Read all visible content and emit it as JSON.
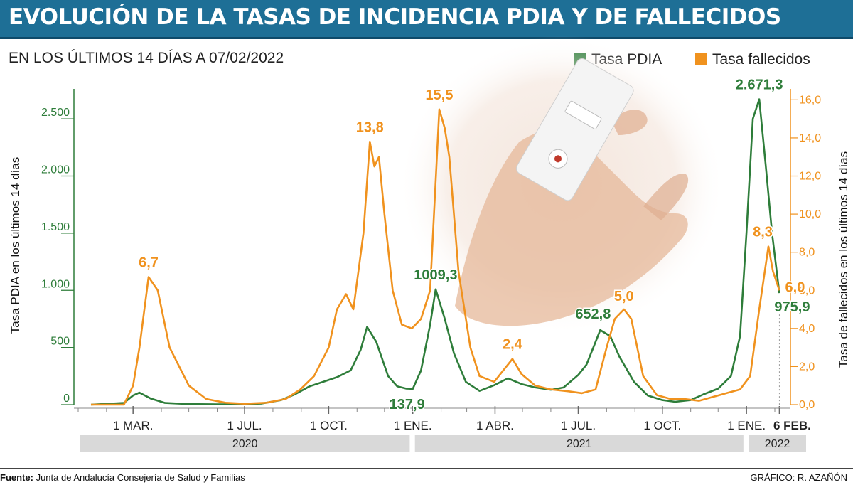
{
  "header": {
    "title": "EVOLUCIÓN DE LA TASAS DE INCIDENCIA PDIA Y DE FALLECIDOS",
    "subtitle": "EN LOS ÚLTIMOS 14 DÍAS A 07/02/2022"
  },
  "legend": {
    "pdia": "Tasa PDIA",
    "fallecidos": "Tasa fallecidos"
  },
  "colors": {
    "pdia": "#2e7d3a",
    "fallecidos": "#f0921e",
    "title_bg": "#1e6f96",
    "year_bar": "#d9d9d9"
  },
  "footer": {
    "source_label": "Fuente:",
    "source_text": "Junta de Andalucía Consejería de Salud y Familias",
    "credit": "GRÁFICO: R. AZAÑÓN"
  },
  "chart_data": {
    "type": "line",
    "title": "EVOLUCIÓN DE LA TASAS DE INCIDENCIA PDIA Y DE FALLECIDOS",
    "subtitle": "EN LOS ÚLTIMOS 14 DÍAS A 07/02/2022",
    "ylabel_left": "Tasa PDIA en los últimos 14 días",
    "ylabel_right": "Tasa de fallecidos en los últimos 14 días",
    "ylim_left": [
      0,
      2700
    ],
    "ylim_right": [
      0,
      16.2
    ],
    "yticks_left": [
      0,
      500,
      1000,
      1500,
      2000,
      2500
    ],
    "yticks_left_labels": [
      "0",
      "500",
      "1.000",
      "1.500",
      "2.000",
      "2.500"
    ],
    "yticks_right": [
      0,
      2,
      4,
      6,
      8,
      10,
      12,
      14,
      16
    ],
    "yticks_right_labels": [
      "0,0",
      "2,0",
      "4,0",
      "6,0",
      "8,0",
      "10,0",
      "12,0",
      "14,0",
      "16,0"
    ],
    "xlim": [
      "2020-01-01",
      "2022-02-15"
    ],
    "xticks": [
      {
        "date": "2020-03-01",
        "label": "1 MAR."
      },
      {
        "date": "2020-07-01",
        "label": "1 JUL."
      },
      {
        "date": "2020-10-01",
        "label": "1 OCT."
      },
      {
        "date": "2021-01-01",
        "label": "1 ENE."
      },
      {
        "date": "2021-04-01",
        "label": "1 ABR."
      },
      {
        "date": "2021-07-01",
        "label": "1 JUL."
      },
      {
        "date": "2021-10-01",
        "label": "1 OCT."
      },
      {
        "date": "2022-01-01",
        "label": "1 ENE."
      },
      {
        "date": "2022-02-06",
        "label": "6 FEB."
      }
    ],
    "years": [
      {
        "label": "2020",
        "start": "2020-01-01",
        "end": "2020-12-31"
      },
      {
        "label": "2021",
        "start": "2021-01-01",
        "end": "2021-12-31"
      },
      {
        "label": "2022",
        "start": "2022-01-01",
        "end": "2022-02-15"
      }
    ],
    "series": [
      {
        "name": "Tasa PDIA",
        "axis": "left",
        "x": [
          "2020-01-15",
          "2020-02-20",
          "2020-03-01",
          "2020-03-08",
          "2020-03-20",
          "2020-04-05",
          "2020-05-01",
          "2020-06-01",
          "2020-07-01",
          "2020-07-20",
          "2020-08-10",
          "2020-08-25",
          "2020-09-10",
          "2020-09-25",
          "2020-10-10",
          "2020-10-25",
          "2020-11-05",
          "2020-11-12",
          "2020-11-22",
          "2020-12-05",
          "2020-12-15",
          "2020-12-25",
          "2021-01-01",
          "2021-01-10",
          "2021-01-20",
          "2021-01-26",
          "2021-02-05",
          "2021-02-15",
          "2021-02-28",
          "2021-03-15",
          "2021-03-31",
          "2021-04-15",
          "2021-04-30",
          "2021-05-15",
          "2021-06-01",
          "2021-06-15",
          "2021-07-01",
          "2021-07-10",
          "2021-07-20",
          "2021-07-25",
          "2021-08-05",
          "2021-08-15",
          "2021-08-31",
          "2021-09-15",
          "2021-10-01",
          "2021-10-15",
          "2021-11-01",
          "2021-11-15",
          "2021-12-01",
          "2021-12-15",
          "2021-12-25",
          "2022-01-01",
          "2022-01-08",
          "2022-01-15",
          "2022-01-22",
          "2022-01-29",
          "2022-02-06"
        ],
        "values": [
          0,
          15,
          80,
          105,
          55,
          15,
          5,
          3,
          3,
          10,
          40,
          90,
          160,
          200,
          240,
          300,
          480,
          680,
          550,
          250,
          160,
          140,
          138,
          300,
          700,
          1009.3,
          750,
          450,
          200,
          120,
          170,
          230,
          180,
          150,
          130,
          150,
          260,
          350,
          550,
          652.8,
          600,
          420,
          200,
          80,
          40,
          25,
          40,
          90,
          140,
          250,
          600,
          1500,
          2500,
          2671.3,
          2100,
          1500,
          975.9
        ]
      },
      {
        "name": "Tasa fallecidos",
        "axis": "right",
        "x": [
          "2020-01-15",
          "2020-02-20",
          "2020-03-01",
          "2020-03-08",
          "2020-03-18",
          "2020-03-28",
          "2020-04-10",
          "2020-05-01",
          "2020-05-20",
          "2020-06-10",
          "2020-07-01",
          "2020-07-25",
          "2020-08-15",
          "2020-08-31",
          "2020-09-15",
          "2020-10-01",
          "2020-10-10",
          "2020-10-20",
          "2020-10-28",
          "2020-11-08",
          "2020-11-15",
          "2020-11-20",
          "2020-11-25",
          "2020-12-01",
          "2020-12-10",
          "2020-12-20",
          "2020-12-31",
          "2021-01-10",
          "2021-01-20",
          "2021-01-30",
          "2021-02-05",
          "2021-02-10",
          "2021-02-20",
          "2021-03-05",
          "2021-03-15",
          "2021-03-31",
          "2021-04-10",
          "2021-04-20",
          "2021-04-30",
          "2021-05-15",
          "2021-06-01",
          "2021-06-20",
          "2021-07-05",
          "2021-07-20",
          "2021-08-01",
          "2021-08-10",
          "2021-08-20",
          "2021-08-28",
          "2021-09-10",
          "2021-09-25",
          "2021-10-10",
          "2021-10-25",
          "2021-11-10",
          "2021-11-25",
          "2021-12-10",
          "2021-12-25",
          "2022-01-05",
          "2022-01-15",
          "2022-01-25",
          "2022-01-30",
          "2022-02-06"
        ],
        "values": [
          0,
          0,
          1,
          3,
          6.7,
          6,
          3,
          1,
          0.3,
          0.1,
          0.05,
          0.1,
          0.3,
          0.8,
          1.5,
          3,
          5,
          5.8,
          5,
          9,
          13.8,
          12.5,
          13,
          10,
          6,
          4.2,
          4,
          4.5,
          6,
          15.5,
          14.5,
          13,
          7,
          3,
          1.5,
          1.2,
          1.8,
          2.4,
          1.6,
          1,
          0.8,
          0.7,
          0.6,
          0.8,
          3,
          4.5,
          5,
          4.5,
          1.5,
          0.5,
          0.3,
          0.3,
          0.2,
          0.4,
          0.6,
          0.8,
          1.5,
          5,
          8.3,
          7,
          6.0
        ]
      }
    ],
    "annotations": [
      {
        "series": "Tasa fallecidos",
        "x": "2020-03-18",
        "value": 6.7,
        "label": "6,7"
      },
      {
        "series": "Tasa fallecidos",
        "x": "2020-11-15",
        "value": 13.8,
        "label": "13,8"
      },
      {
        "series": "Tasa fallecidos",
        "x": "2021-01-30",
        "value": 15.5,
        "label": "15,5"
      },
      {
        "series": "Tasa fallecidos",
        "x": "2021-04-20",
        "value": 2.4,
        "label": "2,4"
      },
      {
        "series": "Tasa fallecidos",
        "x": "2021-08-20",
        "value": 5.0,
        "label": "5,0"
      },
      {
        "series": "Tasa fallecidos",
        "x": "2022-01-25",
        "value": 8.3,
        "label": "8,3"
      },
      {
        "series": "Tasa fallecidos",
        "x": "2022-02-06",
        "value": 6.0,
        "label": "6,0"
      },
      {
        "series": "Tasa PDIA",
        "x": "2021-01-01",
        "value": 137.9,
        "label": "137,9"
      },
      {
        "series": "Tasa PDIA",
        "x": "2021-01-26",
        "value": 1009.3,
        "label": "1009,3"
      },
      {
        "series": "Tasa PDIA",
        "x": "2021-07-25",
        "value": 652.8,
        "label": "652,8"
      },
      {
        "series": "Tasa PDIA",
        "x": "2022-01-15",
        "value": 2671.3,
        "label": "2.671,3"
      },
      {
        "series": "Tasa PDIA",
        "x": "2022-02-06",
        "value": 975.9,
        "label": "975,9"
      }
    ],
    "grid": false,
    "legend_position": "top-right"
  }
}
